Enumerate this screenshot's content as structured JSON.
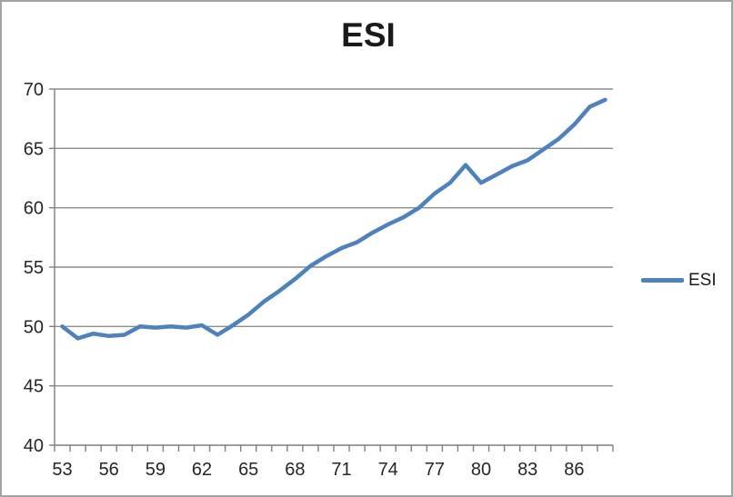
{
  "window": {
    "background": "#ffffff",
    "border_color": "#a3a3a3"
  },
  "chart_data": {
    "type": "line",
    "title": "ESI",
    "categories": [
      "53",
      "54",
      "55",
      "56",
      "57",
      "58",
      "59",
      "60",
      "61",
      "62",
      "63",
      "64",
      "65",
      "66",
      "67",
      "68",
      "69",
      "70",
      "71",
      "72",
      "73",
      "74",
      "75",
      "76",
      "77",
      "78",
      "79",
      "80",
      "81",
      "82",
      "83",
      "84",
      "85",
      "86",
      "87",
      "88"
    ],
    "series": [
      {
        "name": "ESI",
        "color": "#4F81BD",
        "values": [
          50.0,
          49.0,
          49.4,
          49.2,
          49.3,
          50.0,
          49.9,
          50.0,
          49.9,
          50.1,
          49.3,
          50.1,
          51.0,
          52.1,
          53.0,
          54.0,
          55.1,
          55.9,
          56.6,
          57.1,
          57.9,
          58.6,
          59.2,
          60.0,
          61.2,
          62.1,
          63.6,
          62.1,
          62.8,
          63.5,
          64.0,
          64.9,
          65.8,
          67.0,
          68.5,
          69.1
        ]
      }
    ],
    "x_tick_labels": [
      "53",
      "56",
      "59",
      "62",
      "65",
      "68",
      "71",
      "74",
      "77",
      "80",
      "83",
      "86"
    ],
    "x_label_every": 3,
    "ylim": [
      40,
      70
    ],
    "y_ticks": [
      40,
      45,
      50,
      55,
      60,
      65,
      70
    ],
    "grid": "horizontal",
    "gridline_color": "#8e8e8e",
    "axis_color": "#7f7f7f",
    "tick_label_color": "#262626",
    "legend_position": "right",
    "legend_label": "ESI"
  }
}
